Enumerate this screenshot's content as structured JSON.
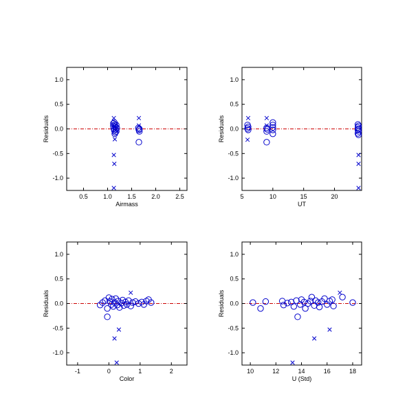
{
  "colors": {
    "points": "#0000cc",
    "zero_line": "#cc0000",
    "axes": "#000000"
  },
  "chart_data": [
    {
      "type": "scatter",
      "xlabel": "Airmass",
      "ylabel": "Residuals",
      "xlim": [
        0.15,
        2.65
      ],
      "ylim": [
        -1.25,
        1.25
      ],
      "xticks": [
        0.5,
        1.0,
        1.5,
        2.0,
        2.5
      ],
      "xtick_labels": [
        "0.5",
        "1.0",
        "1.5",
        "2.0",
        "2.5"
      ],
      "yticks": [
        1.0,
        0.5,
        0.0,
        -0.5,
        -1.0
      ],
      "ytick_labels": [
        "1.0",
        "0.5",
        "0.0",
        "-0.5",
        "-1.0"
      ],
      "reference_line_y": 0.0,
      "series": [
        {
          "marker": "circle",
          "points": [
            [
              1.12,
              0.11
            ],
            [
              1.15,
              0.09
            ],
            [
              1.18,
              0.08
            ],
            [
              1.12,
              0.06
            ],
            [
              1.16,
              0.04
            ],
            [
              1.19,
              0.02
            ],
            [
              1.13,
              0.01
            ],
            [
              1.17,
              -0.01
            ],
            [
              1.14,
              -0.03
            ],
            [
              1.18,
              -0.05
            ],
            [
              1.16,
              -0.07
            ],
            [
              1.15,
              -0.1
            ],
            [
              1.14,
              0.13
            ],
            [
              1.64,
              0.02
            ],
            [
              1.66,
              0.0
            ],
            [
              1.65,
              -0.02
            ],
            [
              1.66,
              -0.05
            ],
            [
              1.65,
              -0.27
            ]
          ]
        },
        {
          "marker": "x",
          "points": [
            [
              1.13,
              0.22
            ],
            [
              1.14,
              0.06
            ],
            [
              1.15,
              -0.21
            ],
            [
              1.13,
              -0.53
            ],
            [
              1.14,
              -0.71
            ],
            [
              1.13,
              -1.2
            ],
            [
              1.65,
              0.22
            ],
            [
              1.65,
              0.07
            ]
          ]
        }
      ]
    },
    {
      "type": "scatter",
      "xlabel": "UT",
      "ylabel": "Residuals",
      "xlim": [
        5,
        24.4
      ],
      "ylim": [
        -1.25,
        1.25
      ],
      "xticks": [
        5,
        10,
        15,
        20
      ],
      "xtick_labels": [
        "5",
        "10",
        "15",
        "20"
      ],
      "yticks": [
        1.0,
        0.5,
        0.0,
        -0.5,
        -1.0
      ],
      "ytick_labels": [
        "1.0",
        "0.5",
        "0.0",
        "-0.5",
        "-1.0"
      ],
      "reference_line_y": 0.0,
      "series": [
        {
          "marker": "circle",
          "points": [
            [
              5.9,
              0.08
            ],
            [
              6.0,
              0.04
            ],
            [
              5.9,
              0.01
            ],
            [
              6.0,
              -0.02
            ],
            [
              9.0,
              0.02
            ],
            [
              9.1,
              -0.01
            ],
            [
              9.0,
              -0.05
            ],
            [
              9.0,
              -0.27
            ],
            [
              10.0,
              0.13
            ],
            [
              10.0,
              0.08
            ],
            [
              10.0,
              0.03
            ],
            [
              10.0,
              -0.02
            ],
            [
              10.0,
              -0.1
            ],
            [
              23.8,
              0.09
            ],
            [
              23.9,
              0.06
            ],
            [
              23.8,
              0.03
            ],
            [
              23.9,
              0.0
            ],
            [
              23.8,
              -0.02
            ],
            [
              23.9,
              -0.05
            ],
            [
              23.8,
              -0.09
            ],
            [
              23.9,
              -0.12
            ]
          ]
        },
        {
          "marker": "x",
          "points": [
            [
              6.0,
              0.22
            ],
            [
              5.9,
              -0.22
            ],
            [
              9.0,
              0.22
            ],
            [
              9.0,
              0.07
            ],
            [
              23.9,
              -0.53
            ],
            [
              23.9,
              -0.71
            ],
            [
              23.9,
              -1.2
            ]
          ]
        }
      ]
    },
    {
      "type": "scatter",
      "xlabel": "Color",
      "ylabel": "Residuals",
      "xlim": [
        -1.35,
        2.5
      ],
      "ylim": [
        -1.25,
        1.25
      ],
      "xticks": [
        -1,
        0,
        1,
        2
      ],
      "xtick_labels": [
        "-1",
        "0",
        "1",
        "2"
      ],
      "yticks": [
        1.0,
        0.5,
        0.0,
        -0.5,
        -1.0
      ],
      "ytick_labels": [
        "1.0",
        "0.5",
        "0.0",
        "-0.5",
        "-1.0"
      ],
      "reference_line_y": 0.0,
      "series": [
        {
          "marker": "circle",
          "points": [
            [
              -0.28,
              -0.03
            ],
            [
              -0.2,
              0.02
            ],
            [
              -0.12,
              0.06
            ],
            [
              -0.05,
              -0.1
            ],
            [
              -0.05,
              -0.27
            ],
            [
              0.0,
              0.12
            ],
            [
              0.03,
              0.04
            ],
            [
              0.08,
              -0.02
            ],
            [
              0.1,
              0.09
            ],
            [
              0.14,
              -0.06
            ],
            [
              0.18,
              0.02
            ],
            [
              0.22,
              0.1
            ],
            [
              0.27,
              -0.03
            ],
            [
              0.3,
              0.05
            ],
            [
              0.34,
              -0.08
            ],
            [
              0.4,
              0.01
            ],
            [
              0.44,
              0.07
            ],
            [
              0.48,
              -0.04
            ],
            [
              0.53,
              0.03
            ],
            [
              0.58,
              -0.02
            ],
            [
              0.63,
              0.06
            ],
            [
              0.7,
              -0.05
            ],
            [
              0.76,
              0.02
            ],
            [
              0.85,
              0.04
            ],
            [
              0.95,
              0.0
            ],
            [
              1.05,
              0.03
            ],
            [
              1.12,
              -0.02
            ],
            [
              1.2,
              0.05
            ],
            [
              1.27,
              0.08
            ],
            [
              1.35,
              0.02
            ]
          ]
        },
        {
          "marker": "x",
          "points": [
            [
              0.7,
              0.22
            ],
            [
              0.18,
              -0.71
            ],
            [
              0.32,
              -0.53
            ],
            [
              0.25,
              -1.2
            ]
          ]
        }
      ]
    },
    {
      "type": "scatter",
      "xlabel": "U (Std)",
      "ylabel": "Residuals",
      "xlim": [
        9.35,
        18.7
      ],
      "ylim": [
        -1.25,
        1.25
      ],
      "xticks": [
        10,
        12,
        14,
        16,
        18
      ],
      "xtick_labels": [
        "10",
        "12",
        "14",
        "16",
        "18"
      ],
      "yticks": [
        1.0,
        0.5,
        0.0,
        -0.5,
        -1.0
      ],
      "ytick_labels": [
        "1.0",
        "0.5",
        "0.0",
        "-0.5",
        "-1.0"
      ],
      "reference_line_y": 0.0,
      "series": [
        {
          "marker": "circle",
          "points": [
            [
              10.2,
              0.02
            ],
            [
              10.8,
              -0.1
            ],
            [
              11.2,
              0.04
            ],
            [
              12.5,
              0.05
            ],
            [
              12.6,
              -0.03
            ],
            [
              12.9,
              0.01
            ],
            [
              13.2,
              0.03
            ],
            [
              13.4,
              -0.06
            ],
            [
              13.6,
              0.06
            ],
            [
              13.7,
              -0.27
            ],
            [
              13.9,
              -0.02
            ],
            [
              14.0,
              0.08
            ],
            [
              14.2,
              0.03
            ],
            [
              14.3,
              -0.1
            ],
            [
              14.5,
              0.0
            ],
            [
              14.7,
              0.05
            ],
            [
              14.8,
              0.13
            ],
            [
              15.0,
              -0.04
            ],
            [
              15.1,
              0.06
            ],
            [
              15.3,
              0.02
            ],
            [
              15.4,
              -0.07
            ],
            [
              15.6,
              0.04
            ],
            [
              15.8,
              0.1
            ],
            [
              16.0,
              -0.02
            ],
            [
              16.2,
              0.05
            ],
            [
              16.4,
              0.08
            ],
            [
              16.5,
              -0.05
            ],
            [
              17.2,
              0.13
            ],
            [
              18.0,
              0.02
            ]
          ]
        },
        {
          "marker": "x",
          "points": [
            [
              17.0,
              0.22
            ],
            [
              15.0,
              -0.71
            ],
            [
              16.2,
              -0.53
            ],
            [
              13.3,
              -1.2
            ]
          ]
        }
      ]
    }
  ]
}
